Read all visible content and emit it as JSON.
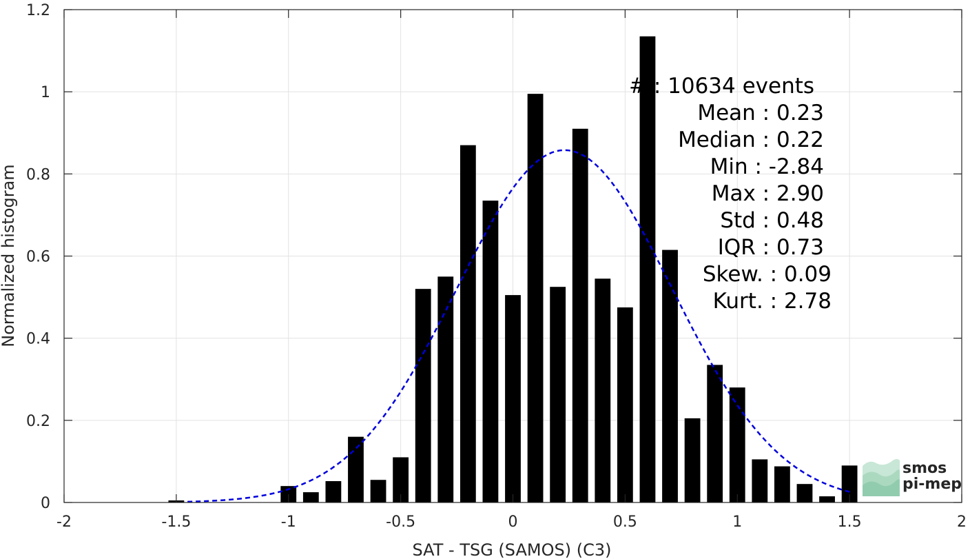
{
  "chart_data": {
    "type": "bar",
    "xlabel": "SAT - TSG (SAMOS) (C3)",
    "ylabel": "Normalized histogram",
    "xlim": [
      -2,
      2
    ],
    "ylim": [
      0,
      1.2
    ],
    "xticks": [
      -2,
      -1.5,
      -1,
      -0.5,
      0,
      0.5,
      1,
      1.5,
      2
    ],
    "xtick_labels": [
      "-2",
      "-1.5",
      "-1",
      "-0.5",
      "0",
      "0.5",
      "1",
      "1.5",
      "2"
    ],
    "yticks": [
      0,
      0.2,
      0.4,
      0.6,
      0.8,
      1,
      1.2
    ],
    "ytick_labels": [
      "0",
      "0.2",
      "0.4",
      "0.6",
      "0.8",
      "1",
      "1.2"
    ],
    "grid": true,
    "bar_width": 0.07,
    "bar_color": "#000000",
    "bars": [
      {
        "x": -1.5,
        "y": 0.005
      },
      {
        "x": -1.0,
        "y": 0.04
      },
      {
        "x": -0.9,
        "y": 0.025
      },
      {
        "x": -0.8,
        "y": 0.052
      },
      {
        "x": -0.7,
        "y": 0.16
      },
      {
        "x": -0.6,
        "y": 0.055
      },
      {
        "x": -0.5,
        "y": 0.11
      },
      {
        "x": -0.4,
        "y": 0.52
      },
      {
        "x": -0.3,
        "y": 0.55
      },
      {
        "x": -0.2,
        "y": 0.87
      },
      {
        "x": -0.1,
        "y": 0.735
      },
      {
        "x": 0.0,
        "y": 0.505
      },
      {
        "x": 0.1,
        "y": 0.995
      },
      {
        "x": 0.2,
        "y": 0.525
      },
      {
        "x": 0.3,
        "y": 0.91
      },
      {
        "x": 0.4,
        "y": 0.545
      },
      {
        "x": 0.5,
        "y": 0.475
      },
      {
        "x": 0.6,
        "y": 1.135
      },
      {
        "x": 0.7,
        "y": 0.615
      },
      {
        "x": 0.8,
        "y": 0.205
      },
      {
        "x": 0.9,
        "y": 0.335
      },
      {
        "x": 1.0,
        "y": 0.28
      },
      {
        "x": 1.1,
        "y": 0.105
      },
      {
        "x": 1.2,
        "y": 0.088
      },
      {
        "x": 1.3,
        "y": 0.045
      },
      {
        "x": 1.4,
        "y": 0.015
      },
      {
        "x": 1.5,
        "y": 0.09
      }
    ],
    "fit_curve": {
      "style": "dashed",
      "color": "#0000dd",
      "mean": 0.23,
      "std": 0.48,
      "peak": 0.858,
      "x_range": [
        -1.45,
        1.5
      ]
    },
    "stats": [
      {
        "text": "#  : 10634 events",
        "align": "left"
      },
      {
        "text": "Mean : 0.23",
        "align": "right"
      },
      {
        "text": "Median : 0.22",
        "align": "right"
      },
      {
        "text": "Min : -2.84",
        "align": "right"
      },
      {
        "text": "Max : 2.90",
        "align": "right"
      },
      {
        "text": "Std : 0.48",
        "align": "right"
      },
      {
        "text": "IQR : 0.73",
        "align": "right"
      },
      {
        "text": "Skew. : 0.09",
        "align": "right"
      },
      {
        "text": "Kurt. : 2.78",
        "align": "right"
      }
    ]
  },
  "logo": {
    "line1": "smos",
    "line2": "pi-mep",
    "color": "#7fc4a0"
  }
}
